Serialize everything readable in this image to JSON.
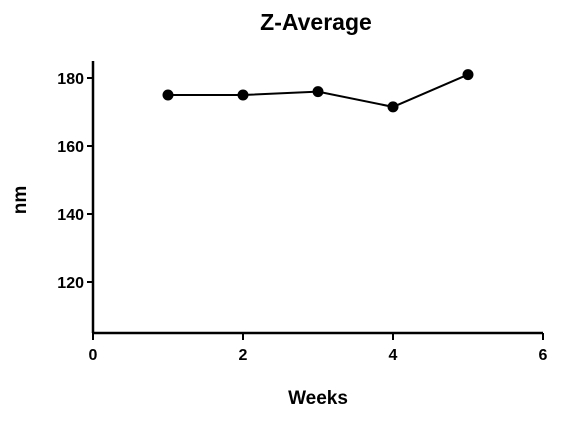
{
  "chart_data": {
    "type": "line",
    "title": "Z-Average",
    "xlabel": "Weeks",
    "ylabel": "nm",
    "xlim": [
      0,
      6
    ],
    "ylim": [
      105,
      185
    ],
    "x_ticks": [
      0,
      2,
      4,
      6
    ],
    "y_ticks": [
      120,
      140,
      160,
      180
    ],
    "grid": false,
    "series": [
      {
        "x": [
          1,
          2,
          3,
          4,
          5
        ],
        "values": [
          175,
          175,
          176,
          171.5,
          181
        ]
      }
    ]
  }
}
